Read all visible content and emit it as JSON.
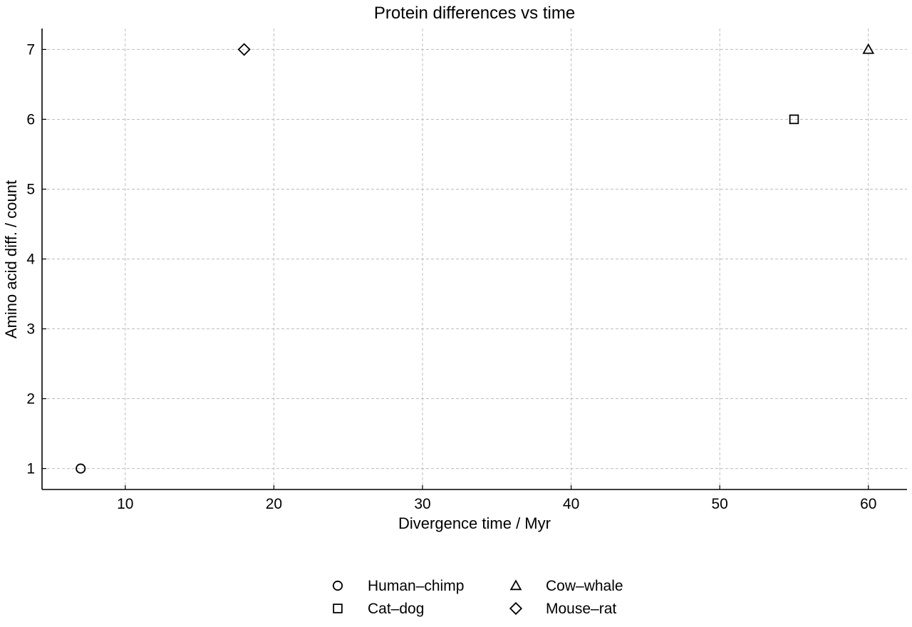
{
  "chart_data": {
    "type": "scatter",
    "title": "Protein differences vs time",
    "xlabel": "Divergence time / Myr",
    "ylabel": "Amino acid diff. / count",
    "xlim": [
      4.4,
      62.6
    ],
    "ylim": [
      0.7,
      7.3
    ],
    "x_ticks": [
      10,
      20,
      30,
      40,
      50,
      60
    ],
    "y_ticks": [
      1,
      2,
      3,
      4,
      5,
      6,
      7
    ],
    "grid": true,
    "legend_position": "bottom-center",
    "series": [
      {
        "name": "Human–chimp",
        "marker": "circle",
        "color": "#000000",
        "points": [
          {
            "x": 7,
            "y": 1
          }
        ]
      },
      {
        "name": "Cat–dog",
        "marker": "square",
        "color": "#000000",
        "points": [
          {
            "x": 55,
            "y": 6
          }
        ]
      },
      {
        "name": "Cow–whale",
        "marker": "triangle",
        "color": "#000000",
        "points": [
          {
            "x": 60,
            "y": 7
          }
        ]
      },
      {
        "name": "Mouse–rat",
        "marker": "diamond",
        "color": "#000000",
        "points": [
          {
            "x": 18,
            "y": 7
          }
        ]
      }
    ]
  }
}
